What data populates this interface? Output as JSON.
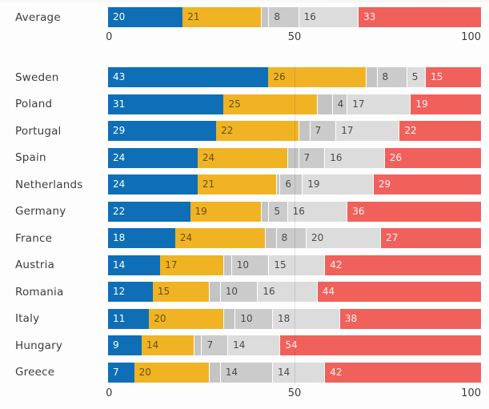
{
  "chart_data": {
    "type": "bar",
    "variant": "horizontal-stacked",
    "title": "",
    "x_axis": {
      "min": 0,
      "max": 100,
      "tick_labels": [
        "0",
        "50",
        "100"
      ],
      "gridline_at": 50,
      "grid": "single faint vertical line at 50"
    },
    "legend": "not visible (cropped out of screenshot)",
    "series_keys": [
      "blue",
      "yellow",
      "gap_unlabeled",
      "gray1",
      "gray2",
      "red"
    ],
    "colors": {
      "blue": "#0e6fb7",
      "yellow": "#f0b324",
      "gap": "#c4c4c4",
      "gray1": "#cbcbcb",
      "gray2": "#dcdcdc",
      "red": "#f0615c"
    },
    "value_label_colors": {
      "blue": "#ffffff",
      "yellow": "rgba(60,48,10,0.75)",
      "gray1": "#4a4a4a",
      "gray2": "#4a4a4a",
      "red": "#fef4f3"
    },
    "note": "gap segment is unlabeled remainder to 100, drawn after yellow",
    "average_row": {
      "label": "Average",
      "values": {
        "blue": 20,
        "yellow": 21,
        "gray1": 8,
        "gray2": 16,
        "red": 33
      }
    },
    "rows": [
      {
        "label": "Sweden",
        "values": {
          "blue": 43,
          "yellow": 26,
          "gray1": 8,
          "gray2": 5,
          "red": 15
        }
      },
      {
        "label": "Poland",
        "values": {
          "blue": 31,
          "yellow": 25,
          "gray1": 4,
          "gray2": 17,
          "red": 19
        }
      },
      {
        "label": "Portugal",
        "values": {
          "blue": 29,
          "yellow": 22,
          "gray1": 7,
          "gray2": 17,
          "red": 22
        }
      },
      {
        "label": "Spain",
        "values": {
          "blue": 24,
          "yellow": 24,
          "gray1": 7,
          "gray2": 16,
          "red": 26
        }
      },
      {
        "label": "Netherlands",
        "values": {
          "blue": 24,
          "yellow": 21,
          "gray1": 6,
          "gray2": 19,
          "red": 29
        }
      },
      {
        "label": "Germany",
        "values": {
          "blue": 22,
          "yellow": 19,
          "gray1": 5,
          "gray2": 16,
          "red": 36
        }
      },
      {
        "label": "France",
        "values": {
          "blue": 18,
          "yellow": 24,
          "gray1": 8,
          "gray2": 20,
          "red": 27
        }
      },
      {
        "label": "Austria",
        "values": {
          "blue": 14,
          "yellow": 17,
          "gray1": 10,
          "gray2": 15,
          "red": 42
        }
      },
      {
        "label": "Romania",
        "values": {
          "blue": 12,
          "yellow": 15,
          "gray1": 10,
          "gray2": 16,
          "red": 44
        }
      },
      {
        "label": "Italy",
        "values": {
          "blue": 11,
          "yellow": 20,
          "gray1": 10,
          "gray2": 18,
          "red": 38
        }
      },
      {
        "label": "Hungary",
        "values": {
          "blue": 9,
          "yellow": 14,
          "gray1": 7,
          "gray2": 14,
          "red": 54
        }
      },
      {
        "label": "Greece",
        "values": {
          "blue": 7,
          "yellow": 20,
          "gray1": 14,
          "gray2": 14,
          "red": 42
        }
      }
    ]
  }
}
